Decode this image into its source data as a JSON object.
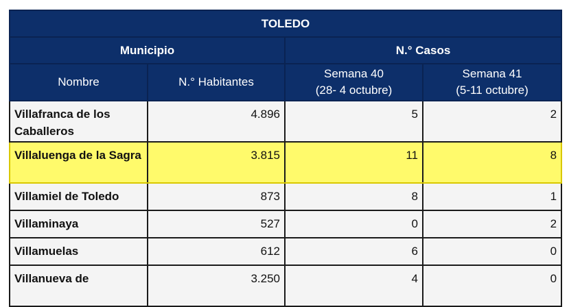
{
  "table": {
    "title": "TOLEDO",
    "group_municipio": "Municipio",
    "group_casos": "N.° Casos",
    "col_nombre": "Nombre",
    "col_habitantes": "N.° Habitantes",
    "col_semana40_line1": "Semana 40",
    "col_semana40_line2": "(28- 4 octubre)",
    "col_semana41_line1": "Semana 41",
    "col_semana41_line2": "(5-11 octubre)",
    "highlight_color": "#fffa6b",
    "header_color": "#0d2f6a",
    "rows": [
      {
        "nombre": "Villafranca de los Caballeros",
        "habitantes": "4.896",
        "semana40": "5",
        "semana41": "2"
      },
      {
        "nombre": "Villaluenga de la Sagra",
        "habitantes": "3.815",
        "semana40": "11",
        "semana41": "8"
      },
      {
        "nombre": "Villamiel de Toledo",
        "habitantes": "873",
        "semana40": "8",
        "semana41": "1"
      },
      {
        "nombre": "Villaminaya",
        "habitantes": "527",
        "semana40": "0",
        "semana41": "2"
      },
      {
        "nombre": "Villamuelas",
        "habitantes": "612",
        "semana40": "6",
        "semana41": "0"
      },
      {
        "nombre": "Villanueva de",
        "habitantes": "3.250",
        "semana40": "4",
        "semana41": "0"
      }
    ]
  }
}
